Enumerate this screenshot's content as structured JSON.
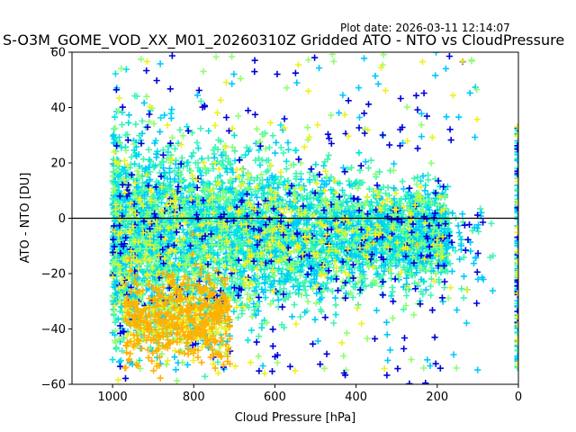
{
  "plot_date": "Plot date: 2026-03-11 12:14:07",
  "chart_data": {
    "type": "scatter",
    "title": "S-O3M_GOME_VOD_XX_M01_20260310Z Gridded ATO - NTO vs CloudPressure",
    "xlabel": "Cloud Pressure [hPa]",
    "ylabel": "ATO - NTO [DU]",
    "xlim": [
      1100,
      0
    ],
    "ylim": [
      -60,
      60
    ],
    "x_inverted": true,
    "xticks": [
      1000,
      800,
      600,
      400,
      200,
      0
    ],
    "xtick_labels": [
      "1000",
      "800",
      "600",
      "400",
      "200",
      "0"
    ],
    "yticks": [
      -60,
      -40,
      -20,
      0,
      20,
      40,
      60
    ],
    "ytick_labels": [
      "−60",
      "−40",
      "−20",
      "0",
      "20",
      "40",
      "60"
    ],
    "reference_line_y": 0,
    "marker": "plus",
    "grid": false,
    "legend": "none",
    "colors": {
      "blue": "#0000dd",
      "cyan": "#00c8ff",
      "aqua": "#00e5e0",
      "seagreen": "#40f5b0",
      "lime": "#90ff70",
      "yellow": "#f0f020",
      "orange": "#ffb000"
    },
    "series_summary": [
      {
        "pressure_range": [
          1000,
          150
        ],
        "center_dob": -5,
        "spread_dob": 15
      },
      {
        "pressure_range": [
          980,
          720
        ],
        "center_dob": -35,
        "spread_dob": 10
      },
      {
        "pressure_range": [
          0,
          0
        ],
        "center_dob": 0,
        "spread_dob": 50
      }
    ]
  }
}
